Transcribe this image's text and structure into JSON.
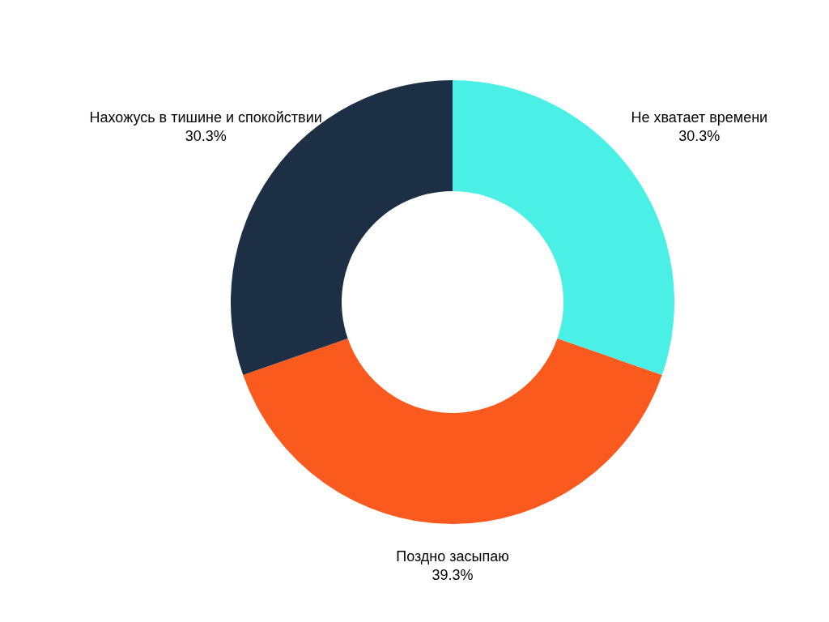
{
  "chart_data": {
    "type": "donut",
    "categories": [
      "Не хватает времени",
      "Поздно засыпаю",
      "Нахожусь в тишине и спокойствии"
    ],
    "values": [
      30.3,
      39.3,
      30.3
    ],
    "value_labels": [
      "30.3%",
      "39.3%",
      "30.3%"
    ],
    "colors": [
      "#4af0e5",
      "#fa5a1e",
      "#1c2f45"
    ]
  }
}
